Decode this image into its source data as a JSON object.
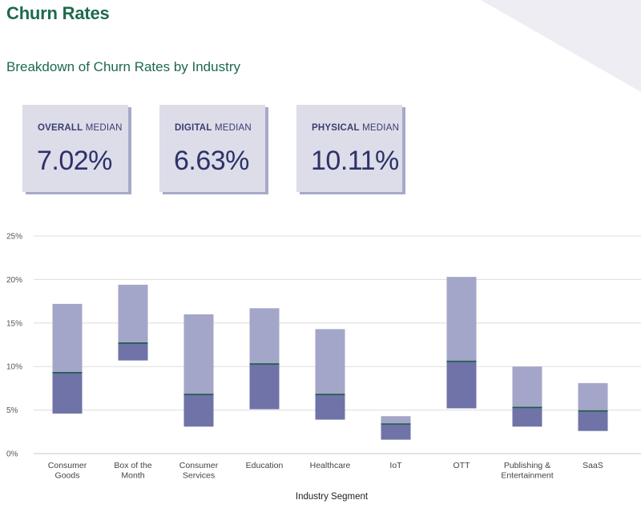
{
  "header": {
    "title": "Churn Rates",
    "subtitle": "Breakdown of Churn Rates by Industry"
  },
  "cards": [
    {
      "label_bold": "OVERALL",
      "label_rest": " MEDIAN",
      "value": "7.02%"
    },
    {
      "label_bold": "DIGITAL",
      "label_rest": " MEDIAN",
      "value": "6.63%"
    },
    {
      "label_bold": "PHYSICAL",
      "label_rest": " MEDIAN",
      "value": "10.11%"
    }
  ],
  "colors": {
    "title": "#1d6a4c",
    "upper_box": "#a3a6c8",
    "lower_box": "#6f73a7",
    "median_line": "#1d5c45",
    "card_bg": "#dcdde9",
    "card_shadow": "#a7a9c9",
    "grid": "#dddddd"
  },
  "chart_data": {
    "type": "box",
    "title": "",
    "xlabel": "Industry Segment",
    "ylabel": "",
    "ylim": [
      0,
      25
    ],
    "yticks": [
      "0%",
      "5%",
      "10%",
      "15%",
      "20%",
      "25%"
    ],
    "ytick_values": [
      0,
      5,
      10,
      15,
      20,
      25
    ],
    "categories": [
      [
        "Consumer",
        "Goods"
      ],
      [
        "Box of the",
        "Month"
      ],
      [
        "Consumer",
        "Services"
      ],
      [
        "Education"
      ],
      [
        "Healthcare"
      ],
      [
        "IoT"
      ],
      [
        "OTT"
      ],
      [
        "Publishing &",
        "Entertainment"
      ],
      [
        "SaaS"
      ]
    ],
    "series": [
      {
        "name": "Consumer Goods",
        "low": 4.6,
        "median": 9.3,
        "high": 17.2
      },
      {
        "name": "Box of the Month",
        "low": 10.7,
        "median": 12.7,
        "high": 19.4
      },
      {
        "name": "Consumer Services",
        "low": 3.1,
        "median": 6.8,
        "high": 16.0
      },
      {
        "name": "Education",
        "low": 5.1,
        "median": 10.3,
        "high": 16.7
      },
      {
        "name": "Healthcare",
        "low": 3.9,
        "median": 6.8,
        "high": 14.3
      },
      {
        "name": "IoT",
        "low": 1.6,
        "median": 3.4,
        "high": 4.3
      },
      {
        "name": "OTT",
        "low": 5.2,
        "median": 10.6,
        "high": 20.3
      },
      {
        "name": "Publishing & Entertainment",
        "low": 3.1,
        "median": 5.3,
        "high": 10.0
      },
      {
        "name": "SaaS",
        "low": 2.6,
        "median": 4.9,
        "high": 8.1
      }
    ]
  }
}
